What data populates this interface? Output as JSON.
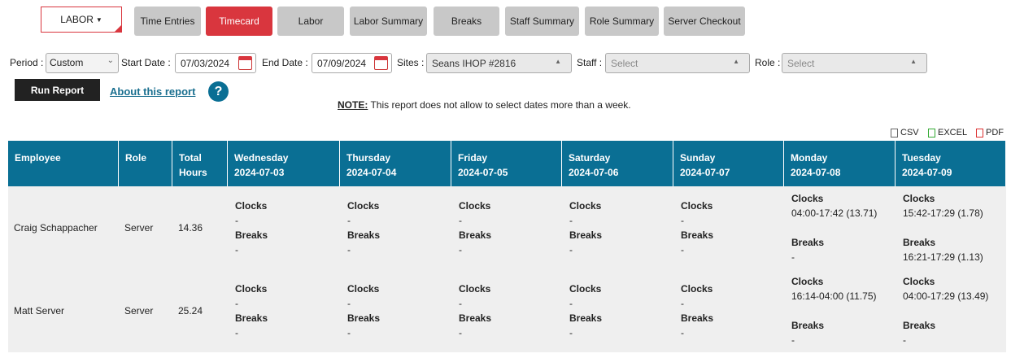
{
  "nav": {
    "dropdown": "LABOR",
    "tabs": [
      "Time Entries",
      "Timecard",
      "Labor",
      "Labor Summary",
      "Breaks",
      "Staff Summary",
      "Role Summary",
      "Server Checkout"
    ],
    "active": 1
  },
  "filters": {
    "period": {
      "label": "Period :",
      "value": "Custom"
    },
    "start": {
      "label": "Start Date :",
      "value": "07/03/2024"
    },
    "end": {
      "label": "End Date :",
      "value": "07/09/2024"
    },
    "sites": {
      "label": "Sites :",
      "value": "Seans IHOP #2816"
    },
    "staff": {
      "label": "Staff :",
      "value": "Select"
    },
    "role": {
      "label": "Role :",
      "value": "Select"
    }
  },
  "actions": {
    "run": "Run Report",
    "about": "About this report",
    "help": "?"
  },
  "note": {
    "label": "NOTE:",
    "text": "This report does not allow to select dates more than a week."
  },
  "exports": [
    "CSV",
    "EXCEL",
    "PDF"
  ],
  "table": {
    "columns": [
      "Employee",
      "Role",
      "Total Hours"
    ],
    "days": [
      {
        "name": "Wednesday",
        "date": "2024-07-03"
      },
      {
        "name": "Thursday",
        "date": "2024-07-04"
      },
      {
        "name": "Friday",
        "date": "2024-07-05"
      },
      {
        "name": "Saturday",
        "date": "2024-07-06"
      },
      {
        "name": "Sunday",
        "date": "2024-07-07"
      },
      {
        "name": "Monday",
        "date": "2024-07-08"
      },
      {
        "name": "Tuesday",
        "date": "2024-07-09"
      }
    ],
    "clocks_label": "Clocks",
    "breaks_label": "Breaks",
    "rows": [
      {
        "employee": "Craig Schappacher",
        "role": "Server",
        "total": "14.36",
        "days": [
          {
            "clocks": [
              "-"
            ],
            "breaks": [
              "-"
            ]
          },
          {
            "clocks": [
              "-"
            ],
            "breaks": [
              "-"
            ]
          },
          {
            "clocks": [
              "-"
            ],
            "breaks": [
              "-"
            ]
          },
          {
            "clocks": [
              "-"
            ],
            "breaks": [
              "-"
            ]
          },
          {
            "clocks": [
              "-"
            ],
            "breaks": [
              "-"
            ]
          },
          {
            "clocks": [
              "04:00-17:42 (13.71)"
            ],
            "breaks": [
              "-"
            ]
          },
          {
            "clocks": [
              "15:42-17:29 (1.78)"
            ],
            "breaks": [
              "16:21-17:29 (1.13)"
            ]
          }
        ]
      },
      {
        "employee": "Matt Server",
        "role": "Server",
        "total": "25.24",
        "days": [
          {
            "clocks": [
              "-"
            ],
            "breaks": [
              "-"
            ]
          },
          {
            "clocks": [
              "-"
            ],
            "breaks": [
              "-"
            ]
          },
          {
            "clocks": [
              "-"
            ],
            "breaks": [
              "-"
            ]
          },
          {
            "clocks": [
              "-"
            ],
            "breaks": [
              "-"
            ]
          },
          {
            "clocks": [
              "-"
            ],
            "breaks": [
              "-"
            ]
          },
          {
            "clocks": [
              "16:14-04:00 (11.75)"
            ],
            "breaks": [
              "-"
            ]
          },
          {
            "clocks": [
              "04:00-17:29 (13.49)"
            ],
            "breaks": [
              "-"
            ]
          }
        ]
      }
    ]
  }
}
